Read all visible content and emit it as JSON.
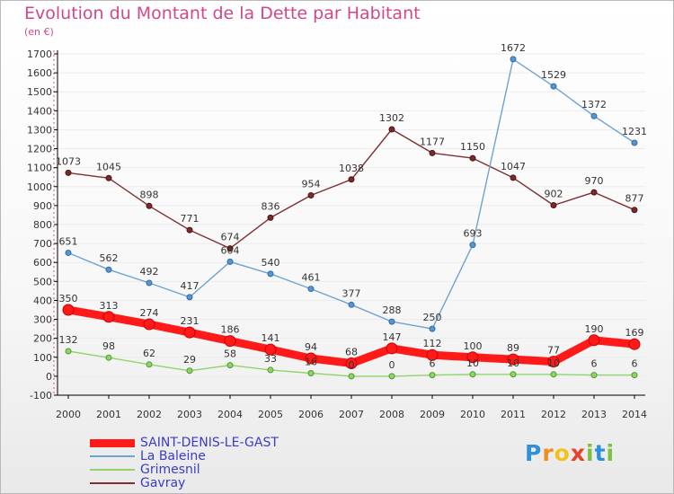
{
  "title": "Evolution du Montant de la Dette par Habitant",
  "unit_label": "(en €)",
  "logo": {
    "text": "Proxiti",
    "letters": [
      "P",
      "r",
      "o",
      "x",
      "i",
      "t",
      "i"
    ],
    "colors": [
      "#2f8fd8",
      "#f28c1e",
      "#f2c21e",
      "#e8432a",
      "#7cc242",
      "#2f8fd8",
      "#7cc242"
    ]
  },
  "chart_data": {
    "type": "line",
    "title": "Evolution du Montant de la Dette par Habitant",
    "subtitle": "(en €)",
    "xlabel": "",
    "ylabel": "",
    "x": [
      "2000",
      "2001",
      "2002",
      "2003",
      "2004",
      "2005",
      "2006",
      "2007",
      "2008",
      "2009",
      "2010",
      "2011",
      "2012",
      "2013",
      "2014"
    ],
    "ylim": [
      -100,
      1700
    ],
    "yticks": [
      "-100",
      "0",
      "100",
      "200",
      "300",
      "400",
      "500",
      "600",
      "700",
      "800",
      "900",
      "1000",
      "1100",
      "1200",
      "1300",
      "1400",
      "1500",
      "1600",
      "1700"
    ],
    "grid": false,
    "legend_position": "bottom-left",
    "series": [
      {
        "name": "SAINT-DENIS-LE-GAST",
        "color": "#ff0000",
        "values": [
          350,
          313,
          274,
          231,
          186,
          141,
          94,
          68,
          147,
          112,
          100,
          89,
          77,
          190,
          169
        ]
      },
      {
        "name": "La Baleine",
        "color": "#6fa2d0",
        "values": [
          651,
          562,
          492,
          417,
          604,
          540,
          461,
          377,
          288,
          250,
          693,
          1672,
          1529,
          1372,
          1231
        ]
      },
      {
        "name": "Grimesnil",
        "color": "#92d36e",
        "values": [
          132,
          98,
          62,
          29,
          58,
          33,
          16,
          0,
          0,
          6,
          10,
          10,
          10,
          6,
          6
        ]
      },
      {
        "name": "Gavray",
        "color": "#7e2f31",
        "values": [
          1073,
          1045,
          898,
          771,
          674,
          836,
          954,
          1038,
          1302,
          1177,
          1150,
          1047,
          902,
          970,
          877
        ]
      }
    ]
  }
}
